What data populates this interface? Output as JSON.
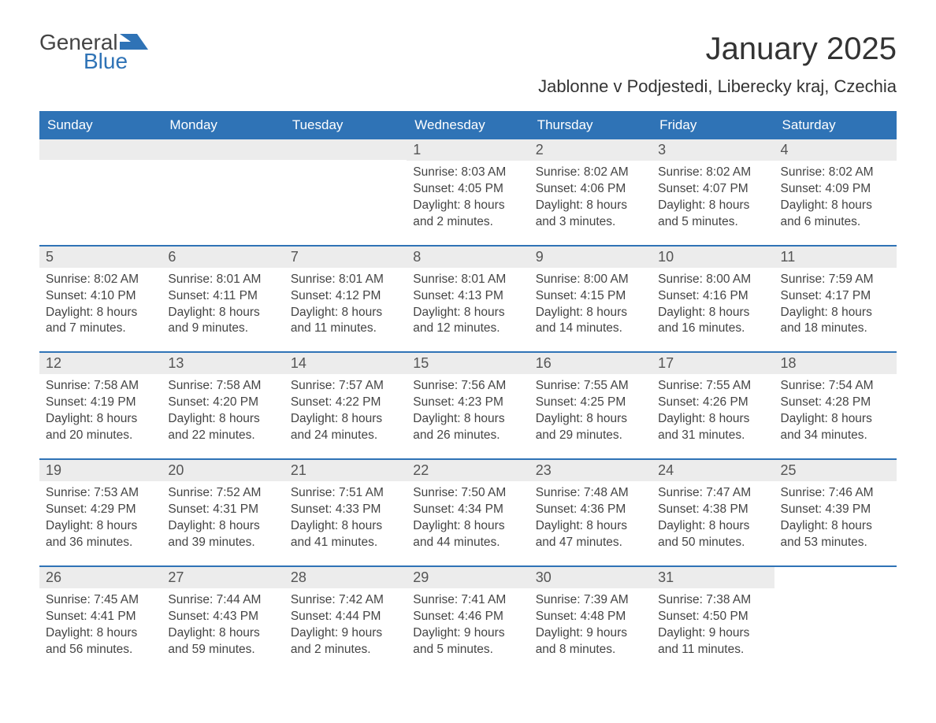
{
  "colors": {
    "brand_blue": "#2f73b6",
    "header_bg": "#2f73b6",
    "header_text": "#ffffff",
    "daynum_bg": "#ececec",
    "body_text": "#444444",
    "page_bg": "#ffffff"
  },
  "logo": {
    "line1": "General",
    "line2": "Blue"
  },
  "title": "January 2025",
  "location": "Jablonne v Podjestedi, Liberecky kraj, Czechia",
  "days_of_week": [
    "Sunday",
    "Monday",
    "Tuesday",
    "Wednesday",
    "Thursday",
    "Friday",
    "Saturday"
  ],
  "layout": {
    "type": "calendar",
    "cols": 7,
    "rows": 5,
    "first_day_col_index": 3,
    "last_day_number": 31
  },
  "weeks": [
    [
      {
        "empty": true
      },
      {
        "empty": true
      },
      {
        "empty": true
      },
      {
        "num": "1",
        "sunrise": "Sunrise: 8:03 AM",
        "sunset": "Sunset: 4:05 PM",
        "daylight": "Daylight: 8 hours and 2 minutes."
      },
      {
        "num": "2",
        "sunrise": "Sunrise: 8:02 AM",
        "sunset": "Sunset: 4:06 PM",
        "daylight": "Daylight: 8 hours and 3 minutes."
      },
      {
        "num": "3",
        "sunrise": "Sunrise: 8:02 AM",
        "sunset": "Sunset: 4:07 PM",
        "daylight": "Daylight: 8 hours and 5 minutes."
      },
      {
        "num": "4",
        "sunrise": "Sunrise: 8:02 AM",
        "sunset": "Sunset: 4:09 PM",
        "daylight": "Daylight: 8 hours and 6 minutes."
      }
    ],
    [
      {
        "num": "5",
        "sunrise": "Sunrise: 8:02 AM",
        "sunset": "Sunset: 4:10 PM",
        "daylight": "Daylight: 8 hours and 7 minutes."
      },
      {
        "num": "6",
        "sunrise": "Sunrise: 8:01 AM",
        "sunset": "Sunset: 4:11 PM",
        "daylight": "Daylight: 8 hours and 9 minutes."
      },
      {
        "num": "7",
        "sunrise": "Sunrise: 8:01 AM",
        "sunset": "Sunset: 4:12 PM",
        "daylight": "Daylight: 8 hours and 11 minutes."
      },
      {
        "num": "8",
        "sunrise": "Sunrise: 8:01 AM",
        "sunset": "Sunset: 4:13 PM",
        "daylight": "Daylight: 8 hours and 12 minutes."
      },
      {
        "num": "9",
        "sunrise": "Sunrise: 8:00 AM",
        "sunset": "Sunset: 4:15 PM",
        "daylight": "Daylight: 8 hours and 14 minutes."
      },
      {
        "num": "10",
        "sunrise": "Sunrise: 8:00 AM",
        "sunset": "Sunset: 4:16 PM",
        "daylight": "Daylight: 8 hours and 16 minutes."
      },
      {
        "num": "11",
        "sunrise": "Sunrise: 7:59 AM",
        "sunset": "Sunset: 4:17 PM",
        "daylight": "Daylight: 8 hours and 18 minutes."
      }
    ],
    [
      {
        "num": "12",
        "sunrise": "Sunrise: 7:58 AM",
        "sunset": "Sunset: 4:19 PM",
        "daylight": "Daylight: 8 hours and 20 minutes."
      },
      {
        "num": "13",
        "sunrise": "Sunrise: 7:58 AM",
        "sunset": "Sunset: 4:20 PM",
        "daylight": "Daylight: 8 hours and 22 minutes."
      },
      {
        "num": "14",
        "sunrise": "Sunrise: 7:57 AM",
        "sunset": "Sunset: 4:22 PM",
        "daylight": "Daylight: 8 hours and 24 minutes."
      },
      {
        "num": "15",
        "sunrise": "Sunrise: 7:56 AM",
        "sunset": "Sunset: 4:23 PM",
        "daylight": "Daylight: 8 hours and 26 minutes."
      },
      {
        "num": "16",
        "sunrise": "Sunrise: 7:55 AM",
        "sunset": "Sunset: 4:25 PM",
        "daylight": "Daylight: 8 hours and 29 minutes."
      },
      {
        "num": "17",
        "sunrise": "Sunrise: 7:55 AM",
        "sunset": "Sunset: 4:26 PM",
        "daylight": "Daylight: 8 hours and 31 minutes."
      },
      {
        "num": "18",
        "sunrise": "Sunrise: 7:54 AM",
        "sunset": "Sunset: 4:28 PM",
        "daylight": "Daylight: 8 hours and 34 minutes."
      }
    ],
    [
      {
        "num": "19",
        "sunrise": "Sunrise: 7:53 AM",
        "sunset": "Sunset: 4:29 PM",
        "daylight": "Daylight: 8 hours and 36 minutes."
      },
      {
        "num": "20",
        "sunrise": "Sunrise: 7:52 AM",
        "sunset": "Sunset: 4:31 PM",
        "daylight": "Daylight: 8 hours and 39 minutes."
      },
      {
        "num": "21",
        "sunrise": "Sunrise: 7:51 AM",
        "sunset": "Sunset: 4:33 PM",
        "daylight": "Daylight: 8 hours and 41 minutes."
      },
      {
        "num": "22",
        "sunrise": "Sunrise: 7:50 AM",
        "sunset": "Sunset: 4:34 PM",
        "daylight": "Daylight: 8 hours and 44 minutes."
      },
      {
        "num": "23",
        "sunrise": "Sunrise: 7:48 AM",
        "sunset": "Sunset: 4:36 PM",
        "daylight": "Daylight: 8 hours and 47 minutes."
      },
      {
        "num": "24",
        "sunrise": "Sunrise: 7:47 AM",
        "sunset": "Sunset: 4:38 PM",
        "daylight": "Daylight: 8 hours and 50 minutes."
      },
      {
        "num": "25",
        "sunrise": "Sunrise: 7:46 AM",
        "sunset": "Sunset: 4:39 PM",
        "daylight": "Daylight: 8 hours and 53 minutes."
      }
    ],
    [
      {
        "num": "26",
        "sunrise": "Sunrise: 7:45 AM",
        "sunset": "Sunset: 4:41 PM",
        "daylight": "Daylight: 8 hours and 56 minutes."
      },
      {
        "num": "27",
        "sunrise": "Sunrise: 7:44 AM",
        "sunset": "Sunset: 4:43 PM",
        "daylight": "Daylight: 8 hours and 59 minutes."
      },
      {
        "num": "28",
        "sunrise": "Sunrise: 7:42 AM",
        "sunset": "Sunset: 4:44 PM",
        "daylight": "Daylight: 9 hours and 2 minutes."
      },
      {
        "num": "29",
        "sunrise": "Sunrise: 7:41 AM",
        "sunset": "Sunset: 4:46 PM",
        "daylight": "Daylight: 9 hours and 5 minutes."
      },
      {
        "num": "30",
        "sunrise": "Sunrise: 7:39 AM",
        "sunset": "Sunset: 4:48 PM",
        "daylight": "Daylight: 9 hours and 8 minutes."
      },
      {
        "num": "31",
        "sunrise": "Sunrise: 7:38 AM",
        "sunset": "Sunset: 4:50 PM",
        "daylight": "Daylight: 9 hours and 11 minutes."
      },
      {
        "empty": true,
        "trailing": true
      }
    ]
  ]
}
